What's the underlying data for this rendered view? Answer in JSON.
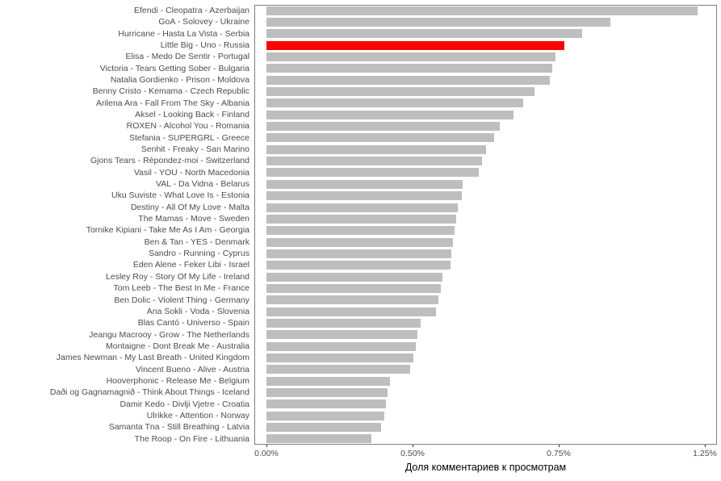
{
  "chart_data": {
    "type": "bar",
    "orientation": "horizontal",
    "title": "",
    "xlabel": "Доля комментариев к просмотрам",
    "ylabel": "",
    "legend": "none",
    "grid": "off",
    "x_tick_labels": [
      "0.00%",
      "0.50%",
      "0.75%",
      "1.25%"
    ],
    "x_axis_range_percent": [
      0,
      1.32
    ],
    "bar_color": "#bebebe",
    "highlight_color": "#ff0000",
    "highlighted_entry": "Little Big - Uno - Russia",
    "value_unit": "percent of comments to views",
    "bars": [
      {
        "label": "Efendi - Cleopatra - Azerbaijan",
        "value": 1.23,
        "highlight": false
      },
      {
        "label": "GoA - Solovey - Ukraine",
        "value": 0.98,
        "highlight": false
      },
      {
        "label": "Hurricane - Hasta La Vista - Serbia",
        "value": 0.9,
        "highlight": false
      },
      {
        "label": "Little Big - Uno - Russia",
        "value": 0.85,
        "highlight": true
      },
      {
        "label": "Elisa - Medo De Sentir - Portugal",
        "value": 0.825,
        "highlight": false
      },
      {
        "label": "Victoria - Tears Getting Sober - Bulgaria",
        "value": 0.815,
        "highlight": false
      },
      {
        "label": "Natalia Gordienko - Prison - Moldova",
        "value": 0.808,
        "highlight": false
      },
      {
        "label": "Benny Cristo - Kemama - Czech Republic",
        "value": 0.765,
        "highlight": false
      },
      {
        "label": "Arilena Ara - Fall From The Sky - Albania",
        "value": 0.732,
        "highlight": false
      },
      {
        "label": "Aksel - Looking Back - Finland",
        "value": 0.705,
        "highlight": false
      },
      {
        "label": "ROXEN - Alcohol You - Romania",
        "value": 0.665,
        "highlight": false
      },
      {
        "label": "Stefania - SUPERGRL - Greece",
        "value": 0.648,
        "highlight": false
      },
      {
        "label": "Senhit - Freaky - San Marino",
        "value": 0.625,
        "highlight": false
      },
      {
        "label": "Gjons Tears - Répondez-moi - Switzerland",
        "value": 0.615,
        "highlight": false
      },
      {
        "label": "Vasil - YOU - North Macedonia",
        "value": 0.605,
        "highlight": false
      },
      {
        "label": "VAL - Da Vidna - Belarus",
        "value": 0.56,
        "highlight": false
      },
      {
        "label": "Uku Suviste - What Love Is - Estonia",
        "value": 0.556,
        "highlight": false
      },
      {
        "label": "Destiny - All Of My Love - Malta",
        "value": 0.546,
        "highlight": false
      },
      {
        "label": "The Mamas - Move - Sweden",
        "value": 0.54,
        "highlight": false
      },
      {
        "label": "Tornike Kipiani - Take Me As I Am - Georgia",
        "value": 0.536,
        "highlight": false
      },
      {
        "label": "Ben & Tan - YES - Denmark",
        "value": 0.532,
        "highlight": false
      },
      {
        "label": "Sandro - Running - Cyprus",
        "value": 0.528,
        "highlight": false
      },
      {
        "label": "Eden Alene - Feker Libi - Israel",
        "value": 0.524,
        "highlight": false
      },
      {
        "label": "Lesley Roy - Story Of My Life - Ireland",
        "value": 0.502,
        "highlight": false
      },
      {
        "label": "Tom Leeb - The Best In Me - France",
        "value": 0.496,
        "highlight": false
      },
      {
        "label": "Ben Dolic - Violent Thing - Germany",
        "value": 0.49,
        "highlight": false
      },
      {
        "label": "Ana Sokli - Voda - Slovenia",
        "value": 0.484,
        "highlight": false
      },
      {
        "label": "Blas Cantó - Universo - Spain",
        "value": 0.44,
        "highlight": false
      },
      {
        "label": "Jeangu Macrooy - Grow - The Netherlands",
        "value": 0.43,
        "highlight": false
      },
      {
        "label": "Montaigne - Dont Break Me - Australia",
        "value": 0.425,
        "highlight": false
      },
      {
        "label": "James Newman - My Last Breath - United Kingdom",
        "value": 0.42,
        "highlight": false
      },
      {
        "label": "Vincent Bueno - Alive - Austria",
        "value": 0.41,
        "highlight": false
      },
      {
        "label": "Hooverphonic - Release Me - Belgium",
        "value": 0.352,
        "highlight": false
      },
      {
        "label": "Daði og Gagnamagnið - Think About Things - Iceland",
        "value": 0.346,
        "highlight": false
      },
      {
        "label": "Damir Kedo - Divlji Vjetre - Croatia",
        "value": 0.341,
        "highlight": false
      },
      {
        "label": "Ulrikke - Attention - Norway",
        "value": 0.336,
        "highlight": false
      },
      {
        "label": "Samanta Tna - Still Breathing - Latvia",
        "value": 0.326,
        "highlight": false
      },
      {
        "label": "The Roop - On Fire - Lithuania",
        "value": 0.3,
        "highlight": false
      }
    ]
  }
}
